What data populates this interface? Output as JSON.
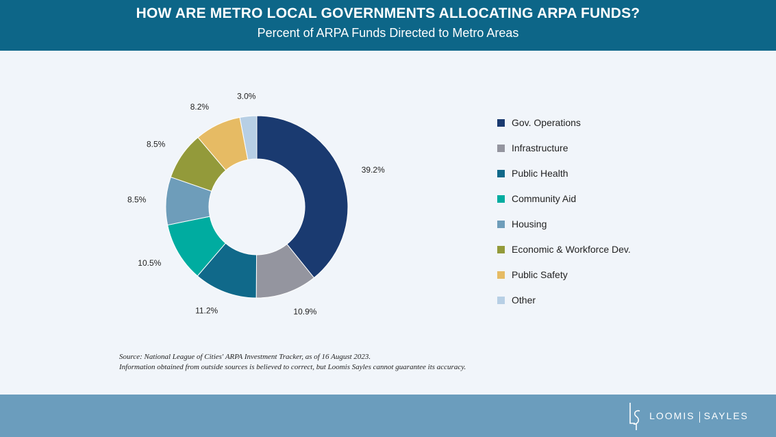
{
  "header": {
    "title": "HOW ARE METRO LOCAL GOVERNMENTS ALLOCATING ARPA FUNDS?",
    "subtitle": "Percent of ARPA Funds Directed to Metro Areas"
  },
  "chart_data": {
    "type": "pie",
    "donut": true,
    "title": "HOW ARE METRO LOCAL GOVERNMENTS ALLOCATING ARPA FUNDS?",
    "subtitle": "Percent of ARPA Funds Directed to Metro Areas",
    "legend_position": "right",
    "slices": [
      {
        "label": "Gov. Operations",
        "value": 39.2,
        "display": "39.2%",
        "color": "#1a3a70"
      },
      {
        "label": "Infrastructure",
        "value": 10.9,
        "display": "10.9%",
        "color": "#94959f"
      },
      {
        "label": "Public Health",
        "value": 11.2,
        "display": "11.2%",
        "color": "#10698a"
      },
      {
        "label": "Community Aid",
        "value": 10.5,
        "display": "10.5%",
        "color": "#00aca0"
      },
      {
        "label": "Housing",
        "value": 8.5,
        "display": "8.5%",
        "color": "#6e9dba"
      },
      {
        "label": "Economic & Workforce Dev.",
        "value": 8.5,
        "display": "8.5%",
        "color": "#939a3a"
      },
      {
        "label": "Public Safety",
        "value": 8.2,
        "display": "8.2%",
        "color": "#e6bb64"
      },
      {
        "label": "Other",
        "value": 3.0,
        "display": "3.0%",
        "color": "#b7cfe5"
      }
    ]
  },
  "source": {
    "line1": "Source: National League of Cities' ARPA Investment Tracker, as of 16 August 2023.",
    "line2": "Information obtained from outside sources is believed to correct, but Loomis Sayles cannot guarantee its accuracy."
  },
  "footer": {
    "logo_left": "LOOMIS",
    "logo_right": "SAYLES",
    "logo_icon": "ls-monogram-icon"
  },
  "colors": {
    "header_bg": "#0d6688",
    "footer_bg": "#6b9dbd",
    "page_bg": "#f1f5fa"
  }
}
